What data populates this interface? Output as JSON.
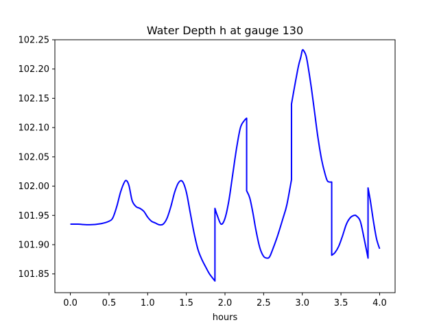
{
  "chart_data": {
    "type": "line",
    "title": "Water Depth h at gauge 130",
    "xlabel": "hours",
    "ylabel": "",
    "xlim": [
      -0.2,
      4.2
    ],
    "ylim": [
      101.818,
      102.25
    ],
    "grid": false,
    "xticks": [
      0.0,
      0.5,
      1.0,
      1.5,
      2.0,
      2.5,
      3.0,
      3.5,
      4.0
    ],
    "xtick_labels": [
      "0.0",
      "0.5",
      "1.0",
      "1.5",
      "2.0",
      "2.5",
      "3.0",
      "3.5",
      "4.0"
    ],
    "yticks": [
      101.85,
      101.9,
      101.95,
      102.0,
      102.05,
      102.1,
      102.15,
      102.2,
      102.25
    ],
    "ytick_labels": [
      "101.85",
      "101.90",
      "101.95",
      "102.00",
      "102.05",
      "102.10",
      "102.15",
      "102.20",
      "102.25"
    ],
    "series": [
      {
        "color": "#0000ff",
        "x": [
          0.0,
          0.1,
          0.25,
          0.4,
          0.5,
          0.55,
          0.6,
          0.65,
          0.7,
          0.73,
          0.76,
          0.8,
          0.85,
          0.9,
          0.95,
          1.0,
          1.05,
          1.1,
          1.15,
          1.2,
          1.25,
          1.3,
          1.35,
          1.4,
          1.45,
          1.5,
          1.55,
          1.6,
          1.65,
          1.7,
          1.75,
          1.8,
          1.87,
          1.87,
          1.9,
          1.95,
          2.0,
          2.05,
          2.1,
          2.15,
          2.2,
          2.25,
          2.28,
          2.28,
          2.32,
          2.36,
          2.4,
          2.45,
          2.5,
          2.55,
          2.58,
          2.62,
          2.68,
          2.75,
          2.8,
          2.86,
          2.86,
          2.9,
          2.95,
          2.98,
          3.0,
          3.02,
          3.05,
          3.08,
          3.12,
          3.16,
          3.2,
          3.25,
          3.3,
          3.33,
          3.38,
          3.38,
          3.42,
          3.47,
          3.52,
          3.57,
          3.62,
          3.67,
          3.7,
          3.75,
          3.8,
          3.85,
          3.85,
          3.88,
          3.92,
          3.96,
          4.0
        ],
        "values": [
          101.935,
          101.935,
          101.934,
          101.936,
          101.94,
          101.946,
          101.965,
          101.99,
          102.007,
          102.009,
          102.0,
          101.975,
          101.965,
          101.962,
          101.957,
          101.947,
          101.94,
          101.937,
          101.934,
          101.935,
          101.945,
          101.965,
          101.99,
          102.006,
          102.008,
          101.99,
          101.955,
          101.92,
          101.892,
          101.875,
          101.862,
          101.85,
          101.838,
          101.962,
          101.95,
          101.935,
          101.945,
          101.975,
          102.02,
          102.065,
          102.1,
          102.112,
          102.116,
          101.992,
          101.98,
          101.955,
          101.925,
          101.895,
          101.88,
          101.877,
          101.88,
          101.893,
          101.915,
          101.945,
          101.968,
          102.011,
          102.14,
          102.17,
          102.205,
          102.22,
          102.232,
          102.231,
          102.222,
          102.2,
          102.165,
          102.125,
          102.085,
          102.045,
          102.018,
          102.008,
          102.007,
          101.882,
          101.886,
          101.897,
          101.915,
          101.935,
          101.946,
          101.95,
          101.949,
          101.94,
          101.91,
          101.877,
          101.997,
          101.975,
          101.94,
          101.91,
          101.893
        ]
      }
    ]
  }
}
